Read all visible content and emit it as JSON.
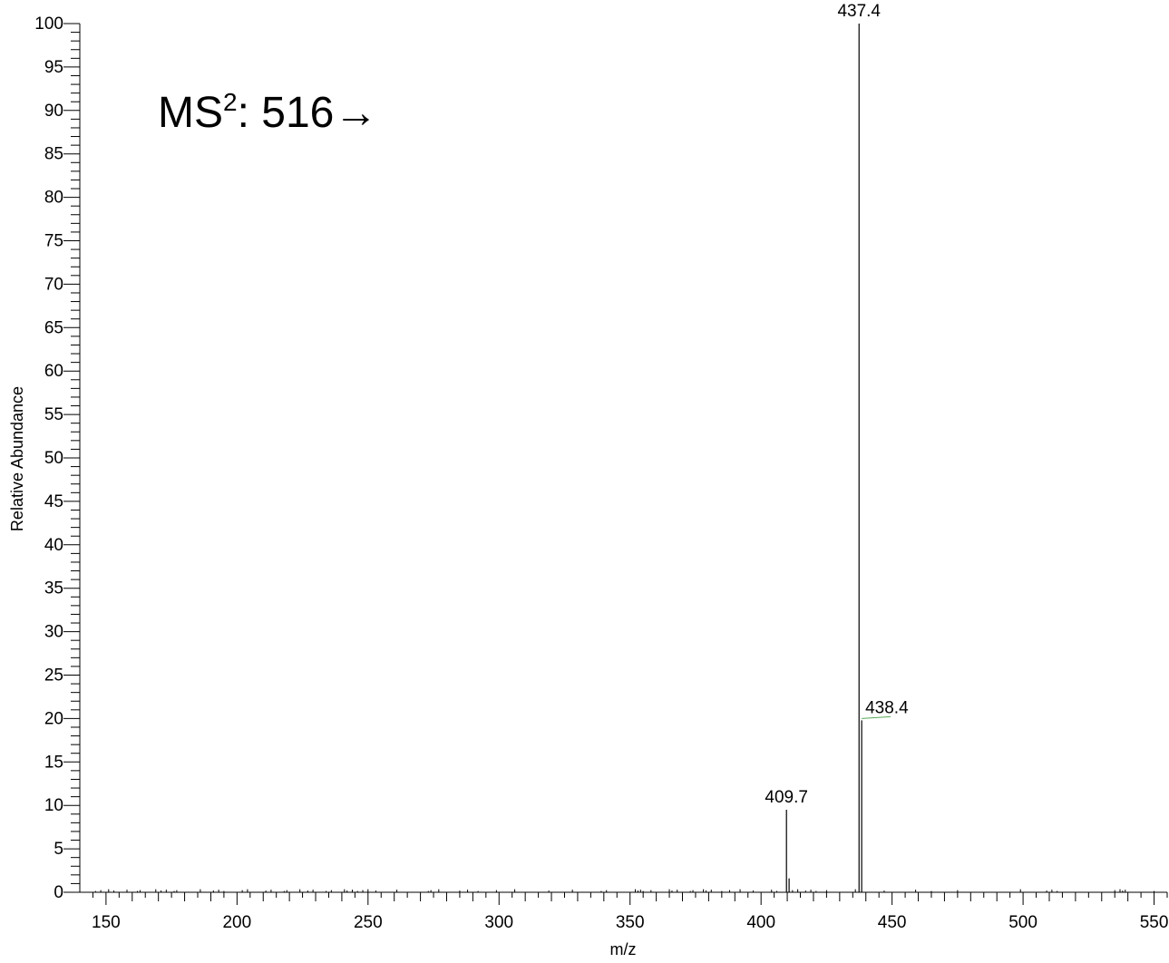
{
  "chart_data": {
    "type": "bar",
    "title": "",
    "xlabel": "m/z",
    "ylabel": "Relative Abundance",
    "xlim": [
      140,
      555
    ],
    "ylim": [
      0,
      100
    ],
    "grid": false,
    "x_ticks": [
      150,
      200,
      250,
      300,
      350,
      400,
      450,
      500,
      550
    ],
    "y_ticks": [
      0,
      5,
      10,
      15,
      20,
      25,
      30,
      35,
      40,
      45,
      50,
      55,
      60,
      65,
      70,
      75,
      80,
      85,
      90,
      95,
      100
    ],
    "annotation": {
      "prefix": "MS",
      "superscript": "2",
      "suffix": ": 516",
      "arrow": "→"
    },
    "peaks": [
      {
        "mz": 409.7,
        "intensity": 9.5,
        "label": "409.7"
      },
      {
        "mz": 410.7,
        "intensity": 1.6,
        "label": ""
      },
      {
        "mz": 437.4,
        "intensity": 100,
        "label": "437.4"
      },
      {
        "mz": 438.4,
        "intensity": 19.8,
        "label": "438.4"
      }
    ],
    "noise_mz": [
      146,
      148,
      151,
      153,
      158,
      162,
      163,
      169,
      171,
      173,
      176,
      177,
      186,
      191,
      193,
      195,
      202,
      204,
      211,
      213,
      218,
      219,
      224,
      227,
      229,
      234,
      236,
      241,
      242,
      244,
      246,
      248,
      250,
      253,
      261,
      273,
      274,
      277,
      285,
      288,
      292,
      299,
      306,
      319,
      328,
      339,
      341,
      352,
      353,
      354,
      355,
      358,
      365,
      366,
      368,
      373,
      374,
      378,
      379,
      381,
      385,
      388,
      392,
      397,
      404,
      406,
      412,
      414,
      417,
      419,
      421,
      425,
      436,
      447,
      459,
      465,
      475,
      499,
      509,
      511,
      513,
      535,
      537,
      538,
      539,
      550
    ]
  }
}
